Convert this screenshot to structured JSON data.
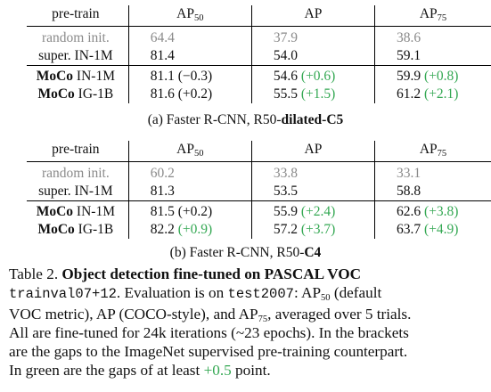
{
  "table_a": {
    "headers": {
      "pretrain": "pre-train",
      "ap50_base": "AP",
      "ap50_sub": "50",
      "ap": "AP",
      "ap75_base": "AP",
      "ap75_sub": "75"
    },
    "rows": [
      {
        "method": "",
        "data": "random init.",
        "ap50": "64.4",
        "ap50_delta": "",
        "ap": "37.9",
        "ap_delta": "",
        "ap75": "38.6",
        "ap75_delta": ""
      },
      {
        "method": "",
        "data": "super. IN-1M",
        "ap50": "81.4",
        "ap50_delta": "",
        "ap": "54.0",
        "ap_delta": "",
        "ap75": "59.1",
        "ap75_delta": ""
      },
      {
        "method": "MoCo",
        "data": "IN-1M",
        "ap50": "81.1",
        "ap50_delta": "(−0.3)",
        "ap": "54.6",
        "ap_delta": "(+0.6)",
        "ap75": "59.9",
        "ap75_delta": "(+0.8)"
      },
      {
        "method": "MoCo",
        "data": "IG-1B",
        "ap50": "81.6",
        "ap50_delta": "(+0.2)",
        "ap": "55.5",
        "ap_delta": "(+1.5)",
        "ap75": "61.2",
        "ap75_delta": "(+2.1)"
      }
    ],
    "caption_prefix": "(a) Faster R-CNN, R50-",
    "caption_bold": "dilated-C5"
  },
  "table_b": {
    "headers": {
      "pretrain": "pre-train",
      "ap50_base": "AP",
      "ap50_sub": "50",
      "ap": "AP",
      "ap75_base": "AP",
      "ap75_sub": "75"
    },
    "rows": [
      {
        "method": "",
        "data": "random init.",
        "ap50": "60.2",
        "ap50_delta": "",
        "ap": "33.8",
        "ap_delta": "",
        "ap75": "33.1",
        "ap75_delta": ""
      },
      {
        "method": "",
        "data": "super. IN-1M",
        "ap50": "81.3",
        "ap50_delta": "",
        "ap": "53.5",
        "ap_delta": "",
        "ap75": "58.8",
        "ap75_delta": ""
      },
      {
        "method": "MoCo",
        "data": "IN-1M",
        "ap50": "81.5",
        "ap50_delta": "(+0.2)",
        "ap": "55.9",
        "ap_delta": "(+2.4)",
        "ap75": "62.6",
        "ap75_delta": "(+3.8)"
      },
      {
        "method": "MoCo",
        "data": "IG-1B",
        "ap50": "82.2",
        "ap50_delta": "(+0.9)",
        "ap": "57.2",
        "ap_delta": "(+3.7)",
        "ap75": "63.7",
        "ap75_delta": "(+4.9)"
      }
    ],
    "caption_prefix": "(b) Faster R-CNN, R50-",
    "caption_bold": "C4"
  },
  "table_caption": {
    "label": "Table 2.",
    "title": "Object detection fine-tuned on PASCAL VOC",
    "code1": "trainval07+12",
    "t1": ". Evaluation is on ",
    "code2": "test2007",
    "t2": ": AP",
    "sub50": "50",
    "t3": " (default",
    "line3": "VOC metric), AP (COCO-style), and AP",
    "sub75": "75",
    "t4": ", averaged over 5 trials.",
    "line4": "All are fine-tuned for 24k iterations (~23 epochs). In the brackets",
    "line5": "are the gaps to the ImageNet supervised pre-training counterpart.",
    "line6a": "In green are the gaps of at least ",
    "line6g": "+0.5",
    "line6b": " point."
  }
}
